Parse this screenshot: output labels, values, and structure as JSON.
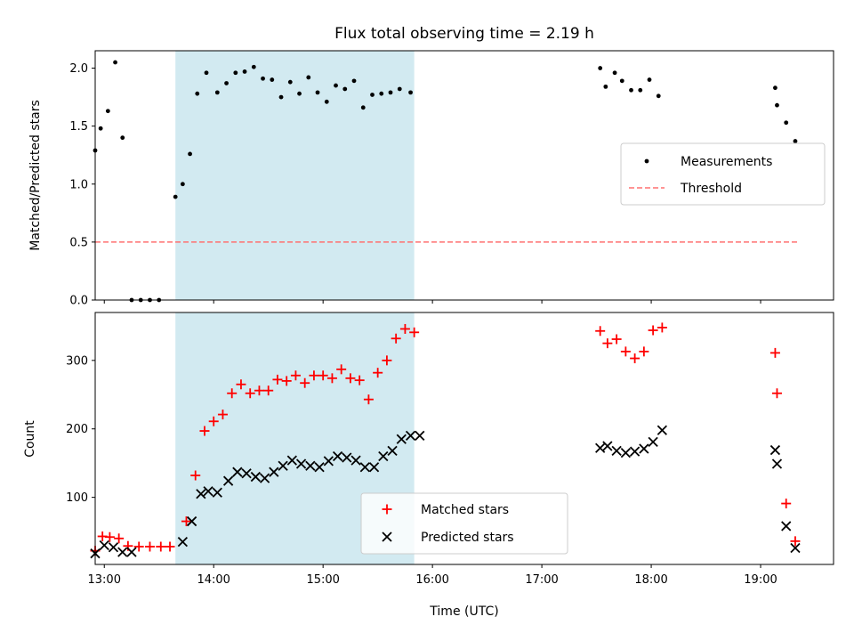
{
  "title": "Flux total observing time = 2.19 h",
  "xlabel": "Time (UTC)",
  "colors": {
    "span": "#add8e6",
    "measure": "#000000",
    "threshold": "#ff7070",
    "matched": "#ff0000",
    "predicted": "#000000"
  },
  "chart_data": [
    {
      "type": "scatter",
      "ylabel": "Matched/Predicted stars",
      "ylim": [
        0,
        2.15
      ],
      "xlim": [
        "12:55",
        "19:40"
      ],
      "yticks": [
        0.0,
        0.5,
        1.0,
        1.5,
        2.0
      ],
      "xticks": [
        "13:00",
        "14:00",
        "15:00",
        "16:00",
        "17:00",
        "18:00",
        "19:00"
      ],
      "show_xtick_labels": false,
      "legend_position": "center-right",
      "shaded_span": [
        "13:39",
        "15:50"
      ],
      "series": [
        {
          "name": "Measurements",
          "marker": "dot",
          "points": [
            [
              "12:55",
              1.29
            ],
            [
              "12:58",
              1.48
            ],
            [
              "13:02",
              1.63
            ],
            [
              "13:06",
              2.05
            ],
            [
              "13:10",
              1.4
            ],
            [
              "13:15",
              0.0
            ],
            [
              "13:20",
              0.0
            ],
            [
              "13:25",
              0.0
            ],
            [
              "13:30",
              0.0
            ],
            [
              "13:39",
              0.89
            ],
            [
              "13:43",
              1.0
            ],
            [
              "13:47",
              1.26
            ],
            [
              "13:51",
              1.78
            ],
            [
              "13:56",
              1.96
            ],
            [
              "14:02",
              1.79
            ],
            [
              "14:07",
              1.87
            ],
            [
              "14:12",
              1.96
            ],
            [
              "14:17",
              1.97
            ],
            [
              "14:22",
              2.01
            ],
            [
              "14:27",
              1.91
            ],
            [
              "14:32",
              1.9
            ],
            [
              "14:37",
              1.75
            ],
            [
              "14:42",
              1.88
            ],
            [
              "14:47",
              1.78
            ],
            [
              "14:52",
              1.92
            ],
            [
              "14:57",
              1.79
            ],
            [
              "15:02",
              1.71
            ],
            [
              "15:07",
              1.85
            ],
            [
              "15:12",
              1.82
            ],
            [
              "15:17",
              1.89
            ],
            [
              "15:22",
              1.66
            ],
            [
              "15:27",
              1.77
            ],
            [
              "15:32",
              1.78
            ],
            [
              "15:37",
              1.79
            ],
            [
              "15:42",
              1.82
            ],
            [
              "15:48",
              1.79
            ],
            [
              "17:32",
              2.0
            ],
            [
              "17:35",
              1.84
            ],
            [
              "17:40",
              1.96
            ],
            [
              "17:44",
              1.89
            ],
            [
              "17:49",
              1.81
            ],
            [
              "17:54",
              1.81
            ],
            [
              "17:59",
              1.9
            ],
            [
              "18:04",
              1.76
            ],
            [
              "19:08",
              1.83
            ],
            [
              "19:09",
              1.68
            ],
            [
              "19:14",
              1.53
            ],
            [
              "19:19",
              1.37
            ]
          ]
        },
        {
          "name": "Threshold",
          "style": "dashed",
          "points": [
            [
              "12:55",
              0.5
            ],
            [
              "19:20",
              0.5
            ]
          ]
        }
      ]
    },
    {
      "type": "scatter",
      "ylabel": "Count",
      "ylim": [
        2,
        370
      ],
      "xlim": [
        "12:55",
        "19:40"
      ],
      "yticks": [
        100,
        200,
        300
      ],
      "xticks": [
        "13:00",
        "14:00",
        "15:00",
        "16:00",
        "17:00",
        "18:00",
        "19:00"
      ],
      "legend_position": "lower-center",
      "shaded_span": [
        "13:39",
        "15:50"
      ],
      "series": [
        {
          "name": "Matched stars",
          "marker": "plus",
          "points": [
            [
              "12:55",
              22
            ],
            [
              "12:59",
              43
            ],
            [
              "13:03",
              42
            ],
            [
              "13:08",
              40
            ],
            [
              "13:13",
              29
            ],
            [
              "13:19",
              28
            ],
            [
              "13:25",
              28
            ],
            [
              "13:31",
              28
            ],
            [
              "13:36",
              28
            ],
            [
              "13:45",
              65
            ],
            [
              "13:50",
              132
            ],
            [
              "13:55",
              197
            ],
            [
              "14:00",
              211
            ],
            [
              "14:05",
              221
            ],
            [
              "14:10",
              252
            ],
            [
              "14:15",
              265
            ],
            [
              "14:20",
              252
            ],
            [
              "14:25",
              256
            ],
            [
              "14:30",
              256
            ],
            [
              "14:35",
              272
            ],
            [
              "14:40",
              270
            ],
            [
              "14:45",
              278
            ],
            [
              "14:50",
              267
            ],
            [
              "14:55",
              278
            ],
            [
              "15:00",
              278
            ],
            [
              "15:05",
              274
            ],
            [
              "15:10",
              287
            ],
            [
              "15:15",
              274
            ],
            [
              "15:20",
              271
            ],
            [
              "15:25",
              243
            ],
            [
              "15:30",
              282
            ],
            [
              "15:35",
              300
            ],
            [
              "15:40",
              332
            ],
            [
              "15:45",
              346
            ],
            [
              "15:50",
              341
            ],
            [
              "17:32",
              343
            ],
            [
              "17:36",
              325
            ],
            [
              "17:41",
              331
            ],
            [
              "17:46",
              313
            ],
            [
              "17:51",
              303
            ],
            [
              "17:56",
              313
            ],
            [
              "18:01",
              344
            ],
            [
              "18:06",
              348
            ],
            [
              "19:08",
              311
            ],
            [
              "19:09",
              252
            ],
            [
              "19:14",
              91
            ],
            [
              "19:19",
              36
            ]
          ]
        },
        {
          "name": "Predicted stars",
          "marker": "x",
          "points": [
            [
              "12:55",
              18
            ],
            [
              "13:00",
              30
            ],
            [
              "13:05",
              27
            ],
            [
              "13:10",
              20
            ],
            [
              "13:15",
              20
            ],
            [
              "13:43",
              35
            ],
            [
              "13:48",
              65
            ],
            [
              "13:53",
              105
            ],
            [
              "13:57",
              109
            ],
            [
              "14:02",
              107
            ],
            [
              "14:08",
              124
            ],
            [
              "14:13",
              137
            ],
            [
              "14:18",
              135
            ],
            [
              "14:23",
              130
            ],
            [
              "14:28",
              128
            ],
            [
              "14:33",
              137
            ],
            [
              "14:38",
              146
            ],
            [
              "14:43",
              154
            ],
            [
              "14:48",
              149
            ],
            [
              "14:53",
              146
            ],
            [
              "14:58",
              144
            ],
            [
              "15:03",
              153
            ],
            [
              "15:08",
              160
            ],
            [
              "15:13",
              158
            ],
            [
              "15:18",
              154
            ],
            [
              "15:23",
              144
            ],
            [
              "15:28",
              144
            ],
            [
              "15:33",
              160
            ],
            [
              "15:38",
              168
            ],
            [
              "15:43",
              185
            ],
            [
              "15:48",
              190
            ],
            [
              "15:53",
              190
            ],
            [
              "17:32",
              172
            ],
            [
              "17:36",
              175
            ],
            [
              "17:41",
              168
            ],
            [
              "17:46",
              165
            ],
            [
              "17:51",
              167
            ],
            [
              "17:56",
              171
            ],
            [
              "18:01",
              181
            ],
            [
              "18:06",
              198
            ],
            [
              "19:08",
              169
            ],
            [
              "19:09",
              149
            ],
            [
              "19:14",
              58
            ],
            [
              "19:19",
              26
            ]
          ]
        }
      ]
    }
  ]
}
